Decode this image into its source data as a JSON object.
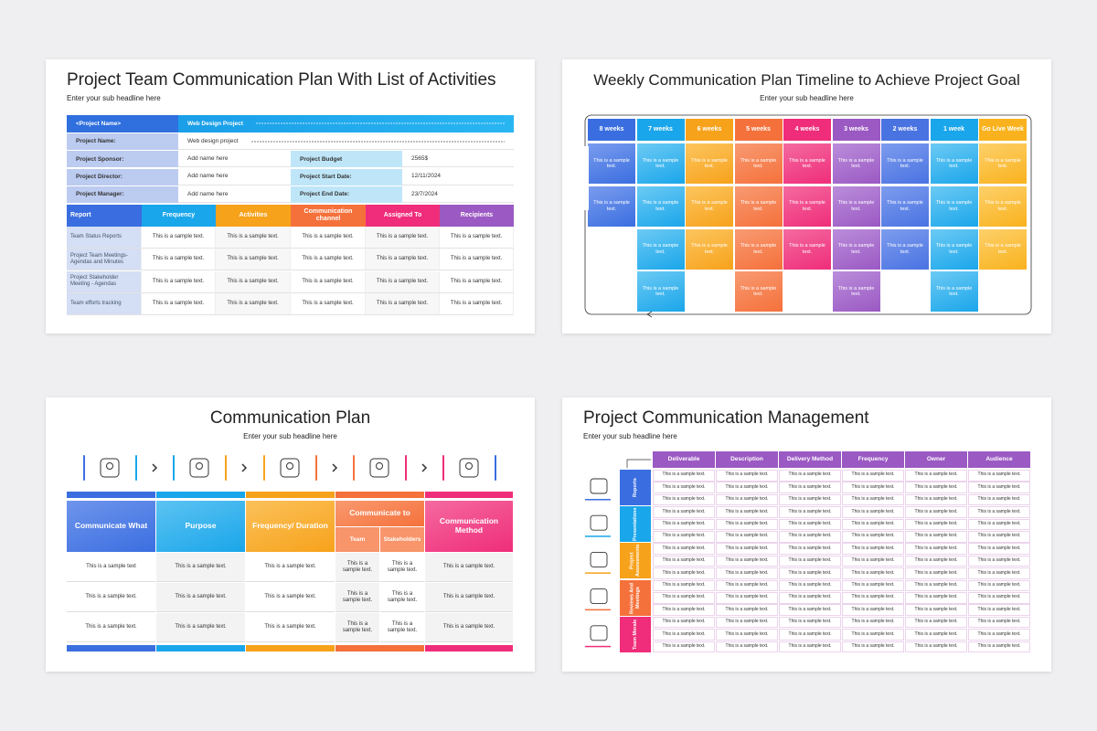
{
  "slide1": {
    "title": "Project Team Communication Plan With List of Activities",
    "subtitle": "Enter your sub headline here",
    "info": [
      [
        "<Project Name>",
        "Web Design Project"
      ],
      [
        "Project Name:",
        "Web design project"
      ],
      [
        "Project Sponsor:",
        "Add name here",
        "Project Budget",
        "2565$"
      ],
      [
        "Project Director:",
        "Add name here",
        "Project Start Date:",
        "12/11/2024"
      ],
      [
        "Project Manager:",
        "Add name here",
        "Project End Date:",
        "23/7/2024"
      ]
    ],
    "headers": [
      "Report",
      "Frequency",
      "Activities",
      "Communication channel",
      "Assigned To",
      "Recipients"
    ],
    "rows": [
      [
        "Team Status Reports",
        "This is a sample text.",
        "This is a sample text.",
        "This is a sample text.",
        "This is a sample text.",
        "This is a sample text."
      ],
      [
        "Project Team Meetings- Agendas and Minutes",
        "This is a sample text.",
        "This is a sample text.",
        "This is a sample text.",
        "This is a sample text.",
        "This is a sample text."
      ],
      [
        "Project Stakeholder Meeting - Agendas",
        "This is a sample text.",
        "This is a sample text.",
        "This is a sample text.",
        "This is a sample text.",
        "This is a sample text."
      ],
      [
        "Team efforts tracking",
        "This is a sample text.",
        "This is a sample text.",
        "This is a sample text.",
        "This is a sample text.",
        "This is a sample text."
      ]
    ]
  },
  "slide2": {
    "title": "Weekly Communication Plan Timeline to Achieve Project Goal",
    "subtitle": "Enter your sub headline here",
    "columns": [
      {
        "header": "8 weeks",
        "cells": [
          "This is a sample text.",
          "This is a sample text."
        ]
      },
      {
        "header": "7 weeks",
        "cells": [
          "This is a sample text.",
          "This is a sample text.",
          "This is a sample text.",
          "This is a sample text."
        ]
      },
      {
        "header": "6 weeks",
        "cells": [
          "This is a sample text.",
          "This is a sample text.",
          "This is a sample text."
        ]
      },
      {
        "header": "5 weeks",
        "cells": [
          "This is a sample text.",
          "This is a sample text.",
          "This is a sample text.",
          "This is a sample text."
        ]
      },
      {
        "header": "4 weeks",
        "cells": [
          "This is a sample text.",
          "This is a sample text.",
          "This is a sample text."
        ]
      },
      {
        "header": "3 weeks",
        "cells": [
          "This is a sample text.",
          "This is a sample text.",
          "This is a sample text.",
          "This is a sample text."
        ]
      },
      {
        "header": "2 weeks",
        "cells": [
          "This is a sample text.",
          "This is a sample text.",
          "This is a sample text."
        ]
      },
      {
        "header": "1 week",
        "cells": [
          "This is a sample text.",
          "This is a sample text.",
          "This is a sample text.",
          "This is a sample text."
        ]
      },
      {
        "header": "Go Live Week",
        "cells": [
          "This is a sample text.",
          "This is a sample text.",
          "This is a sample text."
        ]
      }
    ]
  },
  "slide3": {
    "title": "Communication Plan",
    "subtitle": "Enter your sub headline here",
    "headers": [
      "Communicate What",
      "Purpose",
      "Frequency/ Duration",
      "Communicate to",
      "Communication Method"
    ],
    "subheaders": [
      "Team",
      "Stakeholders"
    ],
    "rows": [
      [
        "This is a sample text",
        "This is a sample text.",
        "This is a sample text.",
        "This is a sample text.",
        "This is a sample text.",
        "This is a sample text."
      ],
      [
        "This is a sample text.",
        "This is a sample text.",
        "This is a sample text.",
        "This is a sample text.",
        "This is a sample text.",
        "This is a sample text."
      ],
      [
        "This is a sample text.",
        "This is a sample text.",
        "This is a sample text.",
        "This is a sample text.",
        "This is a sample text.",
        "This is a sample text."
      ]
    ]
  },
  "slide4": {
    "title": "Project Communication Management",
    "subtitle": "Enter your sub headline here",
    "headers": [
      "Deliverable",
      "Description",
      "Delivery Method",
      "Frequency",
      "Owner",
      "Audience"
    ],
    "groups": [
      {
        "label": "Reports",
        "rows": [
          [
            "This is a sample text.",
            "This is a sample text.",
            "This is a sample text.",
            "This is a sample text.",
            "This is a sample text.",
            "This is a sample text."
          ],
          [
            "This is a sample text.",
            "This is a sample text.",
            "This is a sample text.",
            "This is a sample text.",
            "This is a sample text.",
            "This is a sample text."
          ],
          [
            "This is a sample text.",
            "This is a sample text.",
            "This is a sample text.",
            "This is a sample text.",
            "This is a sample text.",
            "This is a sample text."
          ]
        ]
      },
      {
        "label": "Presentations",
        "rows": [
          [
            "This is a sample text.",
            "This is a sample text.",
            "This is a sample text.",
            "This is a sample text.",
            "This is a sample text.",
            "This is a sample text."
          ],
          [
            "This is a sample text.",
            "This is a sample text.",
            "This is a sample text.",
            "This is a sample text.",
            "This is a sample text.",
            "This is a sample text."
          ],
          [
            "This is a sample text.",
            "This is a sample text.",
            "This is a sample text.",
            "This is a sample text.",
            "This is a sample text.",
            "This is a sample text."
          ]
        ]
      },
      {
        "label": "Project Assessments",
        "rows": [
          [
            "This is a sample text.",
            "This is a sample text.",
            "This is a sample text.",
            "This is a sample text.",
            "This is a sample text.",
            "This is a sample text."
          ],
          [
            "This is a sample text.",
            "This is a sample text.",
            "This is a sample text.",
            "This is a sample text.",
            "This is a sample text.",
            "This is a sample text."
          ],
          [
            "This is a sample text.",
            "This is a sample text.",
            "This is a sample text.",
            "This is a sample text.",
            "This is a sample text.",
            "This is a sample text."
          ]
        ]
      },
      {
        "label": "Reviews And Meetings",
        "rows": [
          [
            "This is a sample text.",
            "This is a sample text.",
            "This is a sample text.",
            "This is a sample text.",
            "This is a sample text.",
            "This is a sample text."
          ],
          [
            "This is a sample text.",
            "This is a sample text.",
            "This is a sample text.",
            "This is a sample text.",
            "This is a sample text.",
            "This is a sample text."
          ],
          [
            "This is a sample text.",
            "This is a sample text.",
            "This is a sample text.",
            "This is a sample text.",
            "This is a sample text.",
            "This is a sample text."
          ]
        ]
      },
      {
        "label": "Team Morale",
        "rows": [
          [
            "This is a sample text.",
            "This is a sample text.",
            "This is a sample text.",
            "This is a sample text.",
            "This is a sample text.",
            "This is a sample text."
          ],
          [
            "This is a sample text.",
            "This is a sample text.",
            "This is a sample text.",
            "This is a sample text.",
            "This is a sample text.",
            "This is a sample text."
          ],
          [
            "This is a sample text.",
            "This is a sample text.",
            "This is a sample text.",
            "This is a sample text.",
            "This is a sample text.",
            "This is a sample text."
          ]
        ]
      }
    ]
  }
}
